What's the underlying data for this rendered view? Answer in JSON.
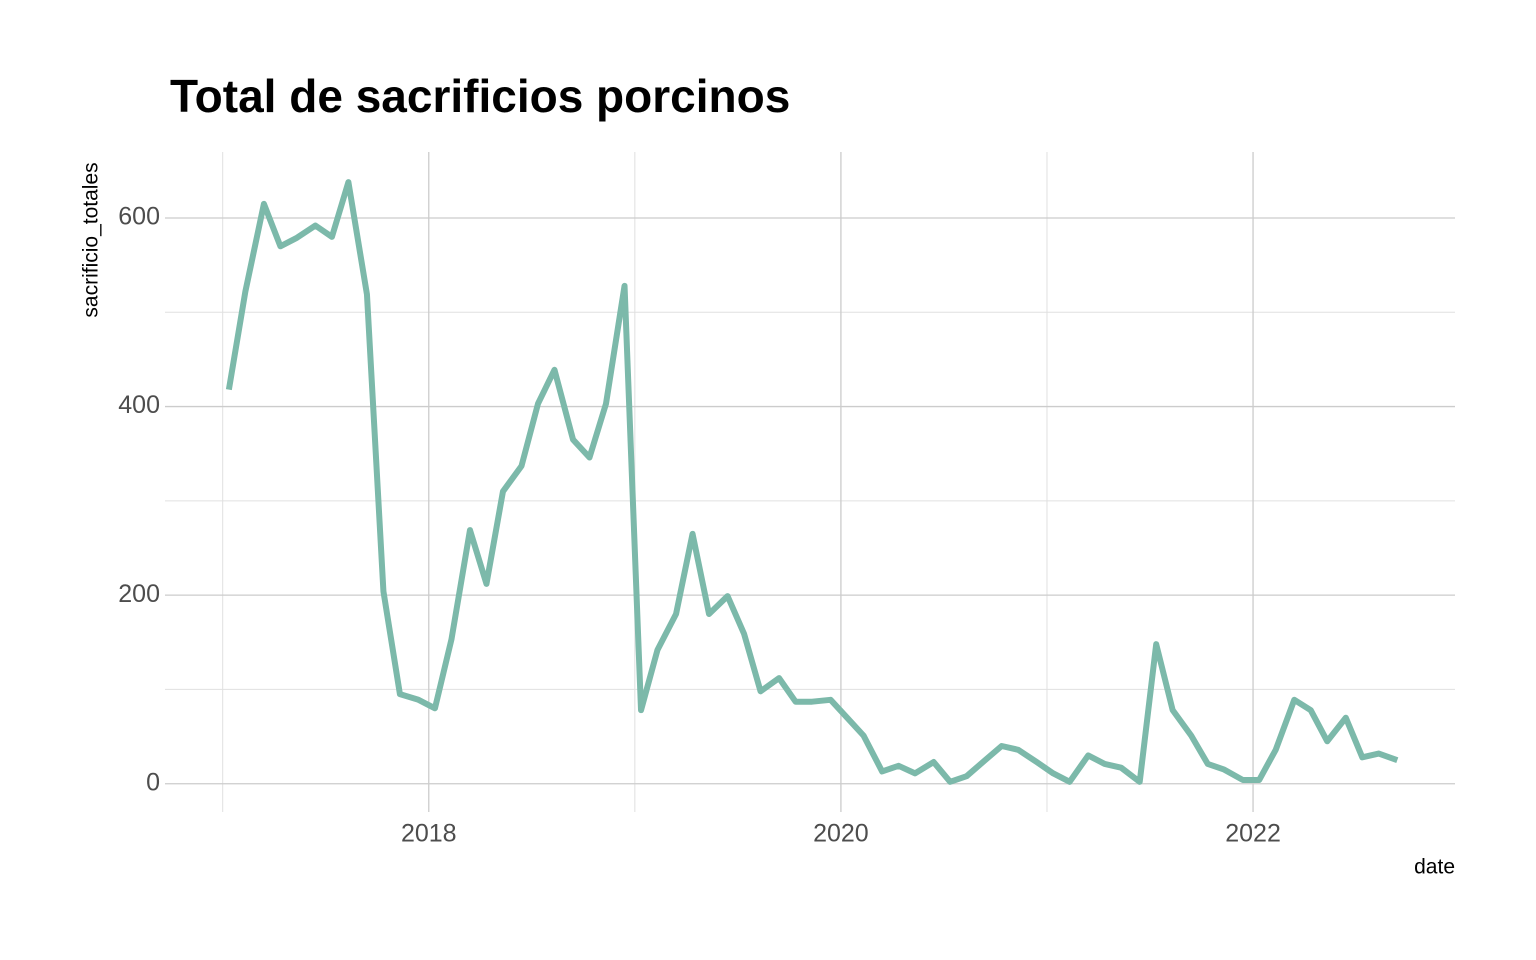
{
  "chart_data": {
    "type": "line",
    "title": "Total de sacrificios porcinos",
    "x_label": "date",
    "y_label": "sacrificio_totales",
    "color": "#7cb9aa",
    "x": [
      2017.03,
      2017.11,
      2017.2,
      2017.28,
      2017.36,
      2017.45,
      2017.53,
      2017.61,
      2017.7,
      2017.78,
      2017.86,
      2017.95,
      2018.03,
      2018.11,
      2018.2,
      2018.28,
      2018.36,
      2018.45,
      2018.53,
      2018.61,
      2018.7,
      2018.78,
      2018.86,
      2018.95,
      2019.03,
      2019.11,
      2019.2,
      2019.28,
      2019.36,
      2019.45,
      2019.53,
      2019.61,
      2019.7,
      2019.78,
      2019.86,
      2019.95,
      2020.03,
      2020.11,
      2020.2,
      2020.28,
      2020.36,
      2020.45,
      2020.53,
      2020.61,
      2020.7,
      2020.78,
      2020.86,
      2020.95,
      2021.03,
      2021.11,
      2021.2,
      2021.28,
      2021.36,
      2021.45,
      2021.53,
      2021.61,
      2021.7,
      2021.78,
      2021.86,
      2021.95,
      2022.03,
      2022.11,
      2022.2,
      2022.28,
      2022.36,
      2022.45,
      2022.53,
      2022.61,
      2022.7
    ],
    "values": [
      418,
      522,
      615,
      570,
      579,
      592,
      580,
      638,
      519,
      204,
      95,
      89,
      80,
      153,
      269,
      212,
      310,
      337,
      403,
      439,
      365,
      346,
      403,
      528,
      78,
      142,
      180,
      265,
      180,
      199,
      159,
      98,
      112,
      87,
      87,
      89,
      70,
      51,
      13,
      19,
      11,
      23,
      2,
      8,
      25,
      40,
      36,
      23,
      11,
      2,
      30,
      21,
      17,
      2,
      148,
      78,
      51,
      21,
      15,
      4,
      4,
      36,
      89,
      78,
      45,
      70,
      28,
      32,
      25
    ],
    "xlim": [
      2016.72,
      2022.98
    ],
    "xticks": [
      2018,
      2020,
      2022
    ],
    "xminor_ticks": [
      2017,
      2019,
      2021
    ],
    "ylim": [
      -30,
      670
    ],
    "yticks": [
      0,
      200,
      400,
      600
    ],
    "yminor_ticks": [
      100,
      300,
      500
    ],
    "grid": true
  }
}
